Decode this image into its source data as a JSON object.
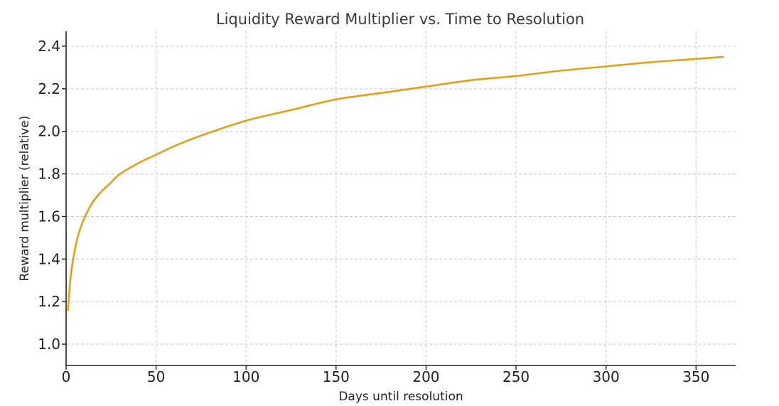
{
  "chart_data": {
    "type": "line",
    "title": "Liquidity Reward Multiplier vs. Time to Resolution",
    "xlabel": "Days until resolution",
    "ylabel": "Reward multiplier (relative)",
    "xlim": [
      0,
      372
    ],
    "ylim": [
      0.9,
      2.47
    ],
    "x_ticks": [
      0,
      50,
      100,
      150,
      200,
      250,
      300,
      350
    ],
    "y_ticks": [
      1.0,
      1.2,
      1.4,
      1.6,
      1.8,
      2.0,
      2.2,
      2.4
    ],
    "x_tick_labels": [
      "0",
      "50",
      "100",
      "150",
      "200",
      "250",
      "300",
      "350"
    ],
    "y_tick_labels": [
      "1.0",
      "1.2",
      "1.4",
      "1.6",
      "1.8",
      "2.0",
      "2.2",
      "2.4"
    ],
    "grid": true,
    "legend": "none",
    "series": [
      {
        "color": "#e3a01a",
        "x": [
          1,
          2,
          3,
          5,
          7,
          10,
          15,
          20,
          25,
          30,
          40,
          50,
          60,
          75,
          100,
          125,
          150,
          175,
          200,
          225,
          250,
          275,
          300,
          325,
          350,
          365
        ],
        "y": [
          1.16,
          1.27,
          1.35,
          1.45,
          1.52,
          1.59,
          1.67,
          1.72,
          1.76,
          1.8,
          1.85,
          1.89,
          1.93,
          1.98,
          2.05,
          2.1,
          2.15,
          2.18,
          2.21,
          2.24,
          2.26,
          2.285,
          2.305,
          2.325,
          2.34,
          2.35
        ]
      }
    ]
  }
}
